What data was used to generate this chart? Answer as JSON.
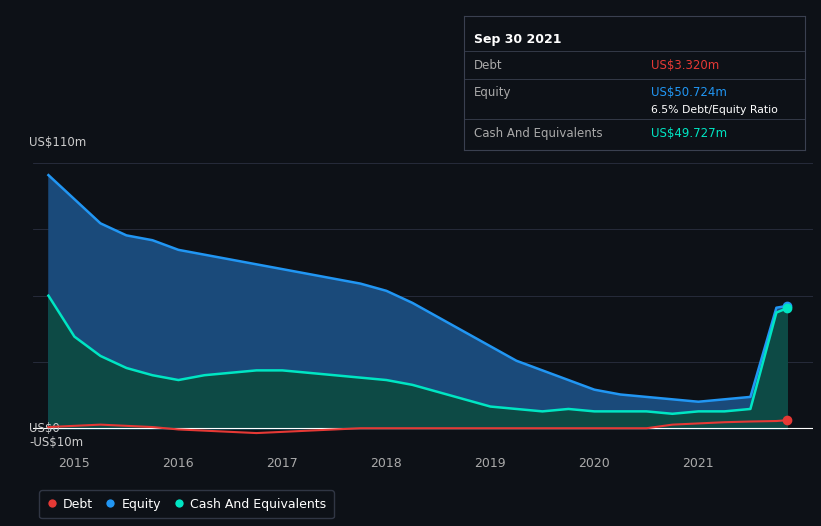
{
  "bg_color": "#0d1117",
  "plot_bg_color": "#0d1117",
  "tooltip": {
    "date": "Sep 30 2021",
    "debt_label": "Debt",
    "debt_value": "US$3.320m",
    "equity_label": "Equity",
    "equity_value": "US$50.724m",
    "ratio_label": "6.5% Debt/Equity Ratio",
    "cash_label": "Cash And Equivalents",
    "cash_value": "US$49.727m"
  },
  "ylim": [
    -10,
    110
  ],
  "equity_color": "#2196f3",
  "equity_fill": "#1a4a7a",
  "cash_color": "#00e5c3",
  "cash_fill": "#0d4a45",
  "debt_color": "#e53935",
  "grid_color": "#2a3040",
  "tooltip_bg": "#0d1117",
  "tooltip_border": "#3a4050",
  "x_years": [
    2014.75,
    2015.0,
    2015.25,
    2015.5,
    2015.75,
    2016.0,
    2016.25,
    2016.5,
    2016.75,
    2017.0,
    2017.25,
    2017.5,
    2017.75,
    2018.0,
    2018.25,
    2018.5,
    2018.75,
    2019.0,
    2019.25,
    2019.5,
    2019.75,
    2020.0,
    2020.25,
    2020.5,
    2020.75,
    2021.0,
    2021.25,
    2021.5,
    2021.75,
    2021.85
  ],
  "equity_values": [
    105,
    95,
    85,
    80,
    78,
    74,
    72,
    70,
    68,
    66,
    64,
    62,
    60,
    57,
    52,
    46,
    40,
    34,
    28,
    24,
    20,
    16,
    14,
    13,
    12,
    11,
    12,
    13,
    50,
    50.724
  ],
  "cash_values": [
    55,
    38,
    30,
    25,
    22,
    20,
    22,
    23,
    24,
    24,
    23,
    22,
    21,
    20,
    18,
    15,
    12,
    9,
    8,
    7,
    8,
    7,
    7,
    7,
    6,
    7,
    7,
    8,
    48,
    49.727
  ],
  "debt_values": [
    0.5,
    1.0,
    1.5,
    1.0,
    0.5,
    -0.5,
    -1.0,
    -1.5,
    -2.0,
    -1.5,
    -1.0,
    -0.5,
    0,
    0,
    0,
    0,
    0,
    0,
    0,
    0,
    0,
    0,
    0,
    0,
    1.5,
    2.0,
    2.5,
    2.8,
    3.0,
    3.32
  ],
  "xtick_positions": [
    2015,
    2016,
    2017,
    2018,
    2019,
    2020,
    2021
  ],
  "ytick_label_top": "US$110m",
  "ytick_label_zero": "US$0",
  "ytick_label_bot": "-US$10m"
}
